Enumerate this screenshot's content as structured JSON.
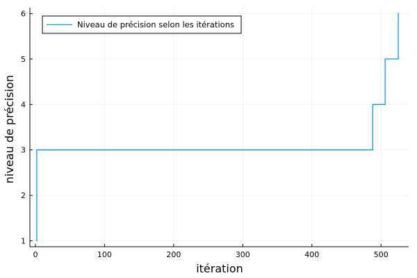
{
  "chart_data": {
    "type": "line",
    "title": "",
    "xlabel": "itération",
    "ylabel": "niveau de précision",
    "xlim": [
      -8,
      540
    ],
    "ylim": [
      0.87,
      6.13
    ],
    "xticks": [
      0,
      100,
      200,
      300,
      400,
      500
    ],
    "yticks": [
      1,
      2,
      3,
      4,
      5,
      6
    ],
    "grid": true,
    "legend_position": "top-left",
    "series": [
      {
        "name": "Niveau de précision selon les itérations",
        "color": "#009AFA",
        "step": "post",
        "x": [
          1,
          2,
          488,
          506,
          525,
          526
        ],
        "y": [
          1,
          3,
          4,
          5,
          6,
          6
        ]
      }
    ]
  }
}
